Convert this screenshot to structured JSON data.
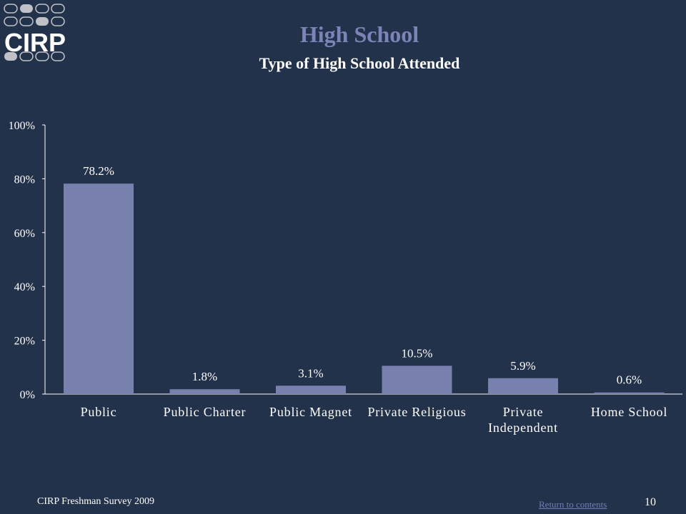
{
  "logo": {
    "text": "CIRP"
  },
  "slide": {
    "title": "High School",
    "subtitle": "Type of High School Attended"
  },
  "chart_data": {
    "type": "bar",
    "title": "Type of High School Attended",
    "categories": [
      "Public",
      "Public Charter",
      "Public Magnet",
      "Private Religious",
      "Private Independent",
      "Home School"
    ],
    "values": [
      78.2,
      1.8,
      3.1,
      10.5,
      5.9,
      0.6
    ],
    "data_labels": [
      "78.2%",
      "1.8%",
      "3.1%",
      "10.5%",
      "5.9%",
      "0.6%"
    ],
    "yticks": [
      "0%",
      "20%",
      "40%",
      "60%",
      "80%",
      "100%"
    ],
    "ylim": [
      0,
      100
    ],
    "xlabel": "",
    "ylabel": "",
    "grid": false,
    "bar_color": "#7880ae"
  },
  "footer": {
    "source": "CIRP Freshman Survey 2009",
    "link": "Return to contents",
    "page": "10"
  }
}
